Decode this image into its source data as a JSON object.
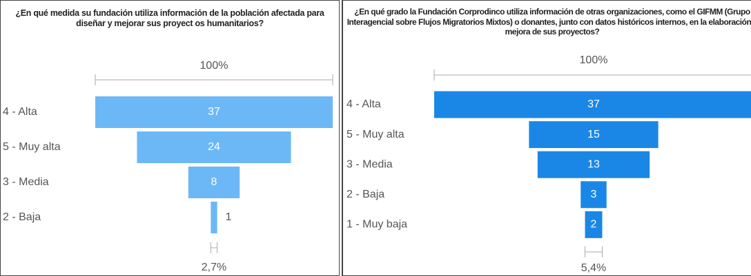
{
  "chart_data": [
    {
      "type": "funnel",
      "title": "¿En qué medida su fundación utiliza información de la población afectada para diseñar y mejorar sus proyect os humanitarios?",
      "categories": [
        "4 - Alta",
        "5 - Muy alta",
        "3 - Media",
        "2 - Baja"
      ],
      "values": [
        37,
        24,
        8,
        1
      ],
      "color": "#6cb8f6",
      "top_label": "100%",
      "bottom_label": "2,7%"
    },
    {
      "type": "funnel",
      "title": "¿En qué grado la Fundación Corprodinco utiliza información de otras organizaciones, como el GIFMM (Grupo Interagencial sobre Flujos Migratorios Mixtos) o donantes, junto con datos históricos internos, en la elaboración y mejora de sus proyectos?",
      "categories": [
        "4 - Alta",
        "5 - Muy alta",
        "3 - Media",
        "2 - Baja",
        "1 - Muy baja"
      ],
      "values": [
        37,
        15,
        13,
        3,
        2
      ],
      "color": "#1a87e6",
      "top_label": "100%",
      "bottom_label": "5,4%"
    }
  ]
}
